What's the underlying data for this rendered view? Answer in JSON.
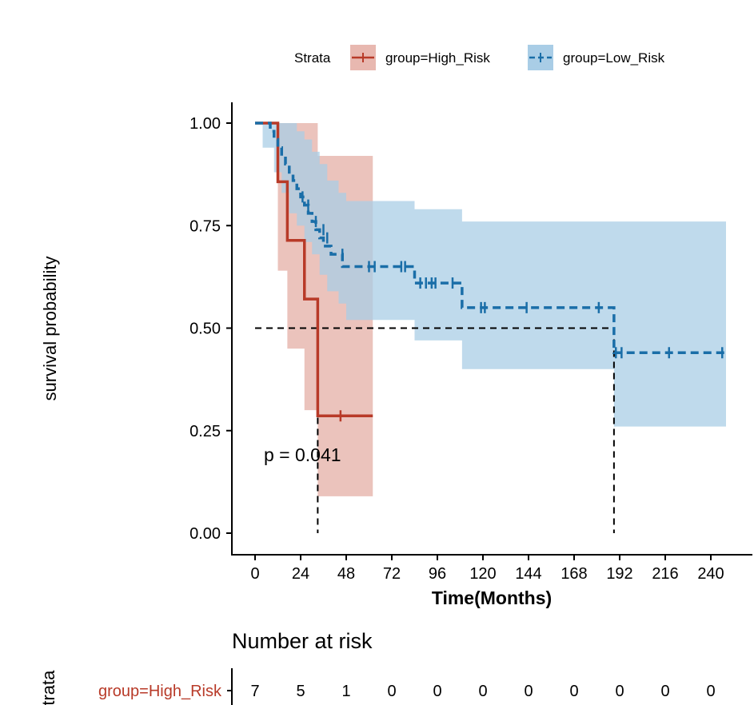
{
  "chart_data": {
    "type": "line",
    "subtype": "kaplan-meier",
    "xlabel": "Time(Months)",
    "ylabel": "survival probability",
    "xlim": [
      -12,
      252
    ],
    "ylim": [
      0,
      1
    ],
    "xticks": [
      0,
      24,
      48,
      72,
      96,
      120,
      144,
      168,
      192,
      216,
      240
    ],
    "yticks": [
      0,
      0.25,
      0.5,
      0.75,
      1.0
    ],
    "ytick_labels": [
      "0.00",
      "0.25",
      "0.50",
      "0.75",
      "1.00"
    ],
    "legend": {
      "title": "Strata",
      "position": "top",
      "entries": [
        "group=High_Risk",
        "group=Low_Risk"
      ]
    },
    "annotation": "p = 0.041",
    "median_line": {
      "y": 0.5,
      "medians": [
        33,
        189
      ]
    },
    "series": [
      {
        "name": "group=High_Risk",
        "color": "#b83a28",
        "fill": "#e8b8b0",
        "linestyle": "solid",
        "steps": [
          [
            0,
            1.0
          ],
          [
            12,
            0.857
          ],
          [
            17,
            0.714
          ],
          [
            26,
            0.571
          ],
          [
            33,
            0.286
          ],
          [
            62,
            0.286
          ]
        ],
        "ci_steps": [
          [
            0,
            1.0,
            1.0
          ],
          [
            12,
            0.64,
            1.0
          ],
          [
            17,
            0.45,
            1.0
          ],
          [
            26,
            0.3,
            1.0
          ],
          [
            33,
            0.09,
            0.92
          ],
          [
            62,
            0.09,
            0.92
          ]
        ],
        "censors": [
          [
            45,
            0.286
          ]
        ]
      },
      {
        "name": "group=Low_Risk",
        "color": "#1a6ea8",
        "fill": "#a9cde6",
        "linestyle": "dashed",
        "steps": [
          [
            0,
            1.0
          ],
          [
            8,
            0.98
          ],
          [
            10,
            0.96
          ],
          [
            12,
            0.94
          ],
          [
            14,
            0.92
          ],
          [
            16,
            0.9
          ],
          [
            18,
            0.88
          ],
          [
            20,
            0.86
          ],
          [
            22,
            0.84
          ],
          [
            24,
            0.82
          ],
          [
            26,
            0.8
          ],
          [
            28,
            0.78
          ],
          [
            30,
            0.76
          ],
          [
            32,
            0.74
          ],
          [
            34,
            0.72
          ],
          [
            36,
            0.7
          ],
          [
            40,
            0.68
          ],
          [
            46,
            0.65
          ],
          [
            84,
            0.61
          ],
          [
            109,
            0.55
          ],
          [
            189,
            0.44
          ],
          [
            248,
            0.44
          ]
        ],
        "ci_steps": [
          [
            0,
            1.0,
            1.0
          ],
          [
            4,
            0.94,
            1.0
          ],
          [
            10,
            0.88,
            1.0
          ],
          [
            14,
            0.83,
            1.0
          ],
          [
            18,
            0.78,
            1.0
          ],
          [
            22,
            0.75,
            0.98
          ],
          [
            26,
            0.71,
            0.96
          ],
          [
            30,
            0.68,
            0.93
          ],
          [
            34,
            0.63,
            0.9
          ],
          [
            38,
            0.59,
            0.86
          ],
          [
            44,
            0.56,
            0.83
          ],
          [
            48,
            0.52,
            0.81
          ],
          [
            84,
            0.47,
            0.79
          ],
          [
            109,
            0.4,
            0.76
          ],
          [
            189,
            0.26,
            0.76
          ],
          [
            248,
            0.26,
            0.76
          ]
        ],
        "censors": [
          [
            25,
            0.82
          ],
          [
            28,
            0.8
          ],
          [
            32,
            0.76
          ],
          [
            36,
            0.74
          ],
          [
            38,
            0.72
          ],
          [
            46,
            0.68
          ],
          [
            60,
            0.65
          ],
          [
            63,
            0.65
          ],
          [
            77,
            0.65
          ],
          [
            79,
            0.65
          ],
          [
            87,
            0.61
          ],
          [
            90,
            0.61
          ],
          [
            93,
            0.61
          ],
          [
            95,
            0.61
          ],
          [
            104,
            0.61
          ],
          [
            119,
            0.55
          ],
          [
            121,
            0.55
          ],
          [
            143,
            0.55
          ],
          [
            181,
            0.55
          ],
          [
            190,
            0.44
          ],
          [
            193,
            0.44
          ],
          [
            218,
            0.44
          ],
          [
            246,
            0.44
          ]
        ]
      }
    ]
  },
  "risk_table": {
    "title": "Number at risk",
    "axis_label": "Strata",
    "rows": [
      {
        "label": "group=High_Risk",
        "color": "#b83a28",
        "values": [
          "7",
          "5",
          "1",
          "0",
          "0",
          "0",
          "0",
          "0",
          "0",
          "0",
          "0"
        ]
      }
    ]
  }
}
